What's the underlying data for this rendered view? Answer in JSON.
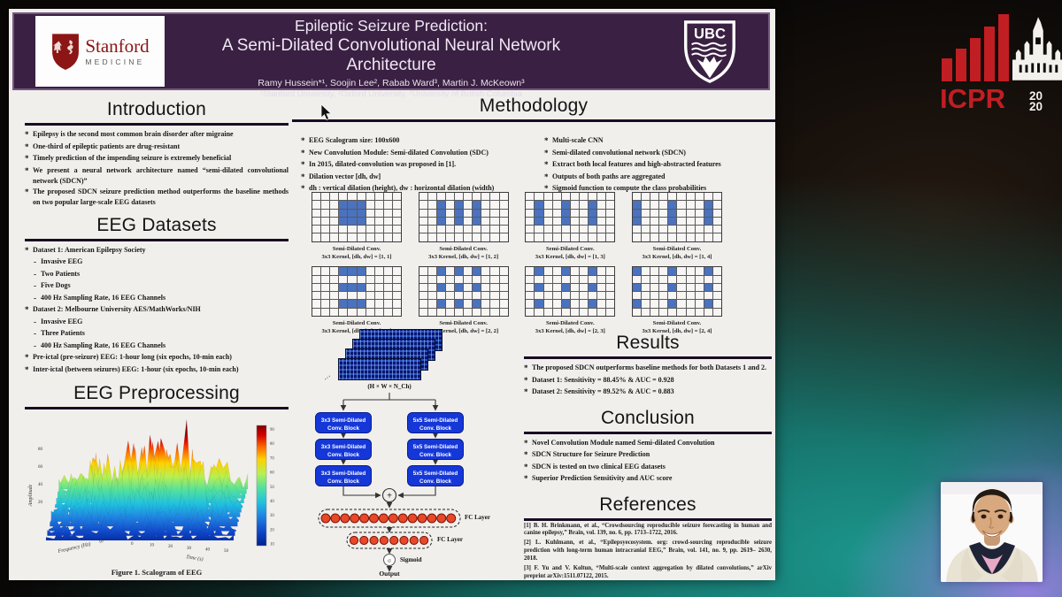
{
  "poster": {
    "header": {
      "title_line1": "Epileptic Seizure Prediction:",
      "title_line2": "A Semi-Dilated Convolutional Neural Network Architecture",
      "authors": "Ramy Hussein*¹, Soojin Lee², Rabab Ward³, Martin J. McKeown³",
      "affiliations": "¹Stanford University, ²Oxford University, ³University of British Columbia",
      "stanford_wordmark": "Stanford",
      "stanford_sub": "MEDICINE",
      "ubc_wordmark": "UBC"
    },
    "introduction": {
      "title": "Introduction",
      "bullets": [
        "Epilepsy is the second most common brain disorder after migraine",
        "One-third of epileptic patients are drug-resistant",
        "Timely prediction of the impending seizure is extremely beneficial",
        "We present a neural network architecture named “semi-dilated convolutional network (SDCN)”",
        "The proposed SDCN seizure prediction method outperforms the baseline methods on two popular large-scale EEG datasets"
      ]
    },
    "eeg_datasets": {
      "title": "EEG Datasets",
      "items": [
        {
          "level": 0,
          "text": "Dataset 1: American Epilepsy Society"
        },
        {
          "level": 1,
          "text": "Invasive EEG"
        },
        {
          "level": 1,
          "text": "Two Patients"
        },
        {
          "level": 1,
          "text": "Five Dogs"
        },
        {
          "level": 1,
          "text": "400 Hz Sampling Rate, 16 EEG Channels"
        },
        {
          "level": 0,
          "text": "Dataset 2: Melbourne University AES/MathWorks/NIH"
        },
        {
          "level": 1,
          "text": "Invasive EEG"
        },
        {
          "level": 1,
          "text": "Three Patients"
        },
        {
          "level": 1,
          "text": "400 Hz Sampling Rate, 16 EEG Channels"
        },
        {
          "level": 0,
          "text": "Pre-ictal (pre-seizure) EEG: 1-hour long (six epochs, 10-min each)"
        },
        {
          "level": 0,
          "text": "Inter-ictal (between seizures) EEG: 1-hour (six epochs, 10-min each)"
        }
      ]
    },
    "eeg_preprocessing": {
      "title": "EEG Preprocessing",
      "figure_caption": "Figure 1. Scalogram of EEG"
    },
    "methodology": {
      "title": "Methodology",
      "left_bullets": [
        "EEG Scalogram size: 100x600",
        "New Convolution Module: Semi-dilated Convolution (SDC)",
        "In 2015, dilated-convolution was proposed in [1].",
        "Dilation vector [dh, dw]",
        "dh : vertical dilation (height), dw : horizontal dilation (width)"
      ],
      "right_bullets": [
        "Multi-scale CNN",
        "Semi-dilated convolutional network (SDCN)",
        "Extract both local features and high-abstracted features",
        "Outputs of both paths are aggregated",
        "Sigmoid function to compute the class probabilities"
      ],
      "grid_size": {
        "cols": 10,
        "rows": 6
      },
      "grids": [
        {
          "line1": "Semi-Dilated Conv.",
          "line2": "3x3 Kernel, [dh, dw] = [1, 1]",
          "dh": 1,
          "dw": 1
        },
        {
          "line1": "Semi-Dilated Conv.",
          "line2": "3x3 Kernel, [dh, dw] = [1, 2]",
          "dh": 1,
          "dw": 2
        },
        {
          "line1": "Semi-Dilated Conv.",
          "line2": "3x3 Kernel, [dh, dw] = [1, 3]",
          "dh": 1,
          "dw": 3
        },
        {
          "line1": "Semi-Dilated Conv.",
          "line2": "3x3 Kernel, [dh, dw] = [1, 4]",
          "dh": 1,
          "dw": 4
        },
        {
          "line1": "Semi-Dilated Conv.",
          "line2": "3x3 Kernel, [dh, dw] = [2, 1]",
          "dh": 2,
          "dw": 1
        },
        {
          "line1": "Semi-Dilated Conv.",
          "line2": "3x3 Kernel, [dh, dw] = [2, 2]",
          "dh": 2,
          "dw": 2
        },
        {
          "line1": "Semi-Dilated Conv.",
          "line2": "3x3 Kernel, [dh, dw] = [2, 3]",
          "dh": 2,
          "dw": 3
        },
        {
          "line1": "Semi-Dilated Conv.",
          "line2": "3x3 Kernel, [dh, dw] = [2, 4]",
          "dh": 2,
          "dw": 4
        }
      ]
    },
    "architecture": {
      "input_label": "(H × W × N_Ch)",
      "left_blocks": [
        {
          "line1": "3x3 Semi-Dilated",
          "line2": "Conv. Block"
        },
        {
          "line1": "3x3 Semi-Dilated",
          "line2": "Conv. Block"
        },
        {
          "line1": "3x3 Semi-Dilated",
          "line2": "Conv. Block"
        }
      ],
      "right_blocks": [
        {
          "line1": "5x5 Semi-Dilated",
          "line2": "Conv. Block"
        },
        {
          "line1": "5x5 Semi-Dilated",
          "line2": "Conv. Block"
        },
        {
          "line1": "5x5 Semi-Dilated",
          "line2": "Conv. Block"
        }
      ],
      "merge_symbol": "+",
      "fc_layers": [
        {
          "label": "FC Layer",
          "nodes": 14
        },
        {
          "label": "FC Layer",
          "nodes": 8
        }
      ],
      "sigmoid_symbol": "σ",
      "sigmoid_label": "Sigmoid",
      "output_label": "Output"
    },
    "results": {
      "title": "Results",
      "bullets": [
        "The proposed SDCN outperforms baseline methods for both Datasets 1 and 2.",
        "Dataset 1: Sensitivity = 88.45% & AUC = 0.928",
        "Dataset 2: Sensitivity = 89.52% & AUC = 0.883"
      ]
    },
    "conclusion": {
      "title": "Conclusion",
      "bullets": [
        "Novel Convolution Module named Semi-dilated Convolution",
        "SDCN Structure for Seizure Prediction",
        "SDCN is tested on two clinical EEG datasets",
        "Superior Prediction Sensitivity and AUC score"
      ]
    },
    "references": {
      "title": "References",
      "items": [
        "[1] B. H. Brinkmann, et al., “Crowdsourcing reproducible seizure forecasting in human and canine epilepsy,” Brain, vol. 139, no. 6, pp. 1713–1722, 2016.",
        "[2] L. Kuhlmann, et al., “Epilepsyecosystem. org: crowd-sourcing reproducible seizure prediction with long-term human intracranial EEG,” Brain, vol. 141, no. 9, pp. 2619– 2630, 2018.",
        "[3] F. Yu and V. Koltun, “Multi-scale context aggregation by dilated convolutions,” arXiv preprint arXiv:1511.07122, 2015."
      ]
    }
  },
  "icpr_logo": {
    "text": "ICPR",
    "year_line1": "20",
    "year_line2": "20"
  },
  "chart_data": {
    "type": "area",
    "note": "3D scalogram surface (jet colormap)",
    "title": "Figure 1. Scalogram of EEG",
    "xlabel": "Time (s)",
    "x_ticks": [
      0,
      10,
      20,
      30,
      40,
      50
    ],
    "ylabel": "Frequency (Hz)",
    "y_ticks": [
      "10⁰"
    ],
    "zlabel": "Amplitude",
    "z_ticks": [
      20,
      40,
      60,
      80
    ],
    "colorbar_ticks": [
      10,
      20,
      30,
      40,
      50,
      60,
      70,
      80,
      90
    ],
    "colormap": "jet",
    "legend_position": "right-colorbar"
  }
}
